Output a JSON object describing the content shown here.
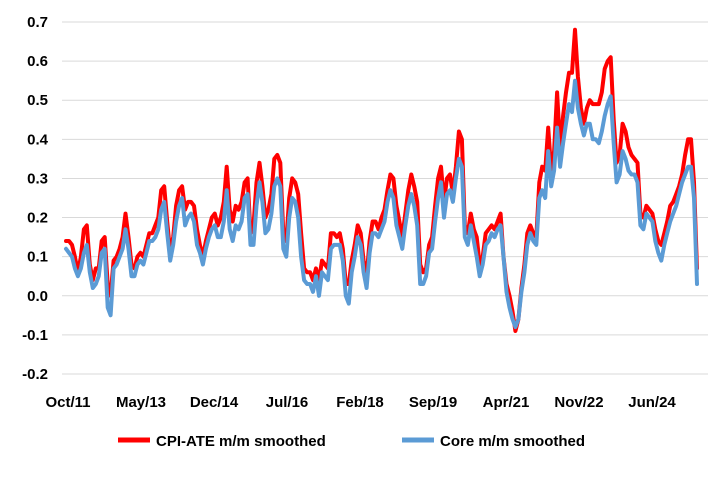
{
  "chart_data": {
    "type": "line",
    "title": "",
    "xlabel": "",
    "ylabel": "",
    "ylim": [
      -0.2,
      0.7
    ],
    "yticks": [
      -0.2,
      -0.1,
      0.0,
      0.1,
      0.2,
      0.3,
      0.4,
      0.5,
      0.6,
      0.7
    ],
    "ytick_labels": [
      "-0.2",
      "-0.1",
      "0.0",
      "0.1",
      "0.2",
      "0.3",
      "0.4",
      "0.5",
      "0.6",
      "0.7"
    ],
    "xticks": [
      "Oct/11",
      "May/13",
      "Dec/14",
      "Jul/16",
      "Feb/18",
      "Sep/19",
      "Apr/21",
      "Nov/22",
      "Jun/24"
    ],
    "x_start": "Oct/11",
    "x_end": "Jan/25",
    "grid": "horizontal",
    "legend_position": "bottom",
    "series": [
      {
        "name": "CPI-ATE m/m smoothed",
        "color": "#ff0000",
        "values": [
          0.14,
          0.14,
          0.13,
          0.1,
          0.06,
          0.1,
          0.17,
          0.18,
          0.08,
          0.04,
          0.07,
          0.07,
          0.14,
          0.15,
          0.03,
          0.0,
          0.09,
          0.1,
          0.12,
          0.15,
          0.21,
          0.15,
          0.08,
          0.07,
          0.1,
          0.11,
          0.1,
          0.13,
          0.16,
          0.16,
          0.18,
          0.2,
          0.27,
          0.28,
          0.19,
          0.11,
          0.15,
          0.23,
          0.27,
          0.28,
          0.22,
          0.24,
          0.24,
          0.23,
          0.17,
          0.13,
          0.1,
          0.14,
          0.17,
          0.2,
          0.21,
          0.18,
          0.2,
          0.24,
          0.33,
          0.22,
          0.19,
          0.23,
          0.22,
          0.24,
          0.29,
          0.3,
          0.16,
          0.18,
          0.29,
          0.34,
          0.28,
          0.2,
          0.22,
          0.26,
          0.35,
          0.36,
          0.34,
          0.16,
          0.14,
          0.25,
          0.3,
          0.29,
          0.26,
          0.16,
          0.07,
          0.06,
          0.06,
          0.04,
          0.07,
          0.04,
          0.09,
          0.08,
          0.07,
          0.16,
          0.16,
          0.15,
          0.16,
          0.12,
          0.03,
          0.03,
          0.09,
          0.13,
          0.18,
          0.16,
          0.09,
          0.05,
          0.14,
          0.19,
          0.19,
          0.17,
          0.2,
          0.22,
          0.27,
          0.31,
          0.3,
          0.23,
          0.19,
          0.15,
          0.21,
          0.27,
          0.31,
          0.28,
          0.24,
          0.08,
          0.06,
          0.07,
          0.13,
          0.15,
          0.23,
          0.3,
          0.33,
          0.24,
          0.3,
          0.31,
          0.26,
          0.33,
          0.42,
          0.4,
          0.18,
          0.16,
          0.21,
          0.17,
          0.15,
          0.08,
          0.1,
          0.16,
          0.17,
          0.18,
          0.17,
          0.19,
          0.21,
          0.1,
          0.03,
          0.0,
          -0.04,
          -0.09,
          -0.06,
          0.02,
          0.08,
          0.16,
          0.18,
          0.16,
          0.15,
          0.29,
          0.33,
          0.32,
          0.43,
          0.32,
          0.37,
          0.52,
          0.38,
          0.46,
          0.52,
          0.57,
          0.57,
          0.68,
          0.56,
          0.48,
          0.44,
          0.48,
          0.5,
          0.49,
          0.49,
          0.49,
          0.52,
          0.58,
          0.6,
          0.61,
          0.45,
          0.34,
          0.36,
          0.44,
          0.42,
          0.38,
          0.36,
          0.35,
          0.34,
          0.21,
          0.2,
          0.23,
          0.22,
          0.21,
          0.17,
          0.14,
          0.13,
          0.16,
          0.19,
          0.23,
          0.24,
          0.26,
          0.28,
          0.31,
          0.36,
          0.4,
          0.4,
          0.29,
          0.07
        ]
      },
      {
        "name": "Core m/m smoothed",
        "color": "#5b9bd5",
        "values": [
          0.12,
          0.11,
          0.1,
          0.07,
          0.05,
          0.07,
          0.11,
          0.13,
          0.06,
          0.02,
          0.03,
          0.05,
          0.11,
          0.12,
          -0.03,
          -0.05,
          0.07,
          0.08,
          0.1,
          0.12,
          0.17,
          0.12,
          0.05,
          0.05,
          0.08,
          0.09,
          0.08,
          0.11,
          0.14,
          0.14,
          0.15,
          0.17,
          0.22,
          0.24,
          0.16,
          0.09,
          0.13,
          0.19,
          0.23,
          0.25,
          0.18,
          0.2,
          0.21,
          0.19,
          0.13,
          0.11,
          0.08,
          0.12,
          0.15,
          0.17,
          0.18,
          0.15,
          0.15,
          0.19,
          0.27,
          0.17,
          0.14,
          0.18,
          0.17,
          0.19,
          0.25,
          0.26,
          0.13,
          0.13,
          0.23,
          0.29,
          0.24,
          0.16,
          0.17,
          0.21,
          0.28,
          0.3,
          0.28,
          0.12,
          0.1,
          0.2,
          0.25,
          0.24,
          0.2,
          0.1,
          0.04,
          0.03,
          0.03,
          0.01,
          0.05,
          0.0,
          0.06,
          0.05,
          0.04,
          0.12,
          0.13,
          0.13,
          0.13,
          0.09,
          0.0,
          -0.02,
          0.06,
          0.1,
          0.15,
          0.13,
          0.06,
          0.02,
          0.11,
          0.16,
          0.16,
          0.15,
          0.17,
          0.19,
          0.24,
          0.27,
          0.25,
          0.18,
          0.15,
          0.12,
          0.18,
          0.23,
          0.26,
          0.23,
          0.18,
          0.03,
          0.03,
          0.05,
          0.11,
          0.12,
          0.19,
          0.25,
          0.29,
          0.2,
          0.26,
          0.27,
          0.24,
          0.3,
          0.35,
          0.33,
          0.15,
          0.13,
          0.18,
          0.14,
          0.1,
          0.05,
          0.08,
          0.13,
          0.14,
          0.16,
          0.15,
          0.17,
          0.18,
          0.1,
          0.01,
          -0.03,
          -0.06,
          -0.08,
          -0.06,
          0.01,
          0.06,
          0.13,
          0.16,
          0.14,
          0.13,
          0.25,
          0.27,
          0.25,
          0.37,
          0.28,
          0.32,
          0.43,
          0.33,
          0.39,
          0.44,
          0.49,
          0.47,
          0.55,
          0.48,
          0.44,
          0.41,
          0.44,
          0.44,
          0.4,
          0.4,
          0.39,
          0.42,
          0.46,
          0.49,
          0.51,
          0.39,
          0.29,
          0.31,
          0.37,
          0.35,
          0.32,
          0.31,
          0.31,
          0.29,
          0.18,
          0.17,
          0.21,
          0.2,
          0.19,
          0.14,
          0.11,
          0.09,
          0.13,
          0.16,
          0.19,
          0.21,
          0.23,
          0.26,
          0.29,
          0.31,
          0.33,
          0.33,
          0.25,
          0.03
        ]
      }
    ]
  }
}
